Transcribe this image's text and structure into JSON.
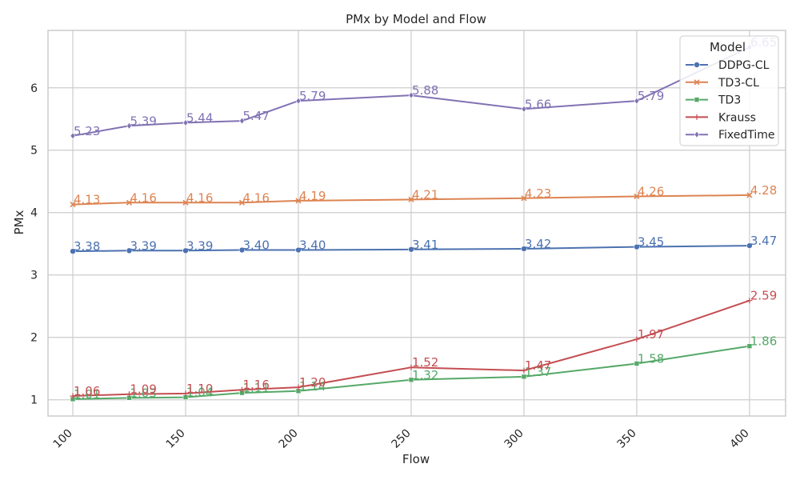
{
  "chart_data": {
    "type": "line",
    "title": "PMx by Model and Flow",
    "xlabel": "Flow",
    "ylabel": "PMx",
    "x": [
      100,
      125,
      150,
      175,
      200,
      250,
      300,
      350,
      400
    ],
    "xticks": [
      100,
      150,
      200,
      250,
      300,
      350,
      400
    ],
    "yticks": [
      1,
      2,
      3,
      4,
      5,
      6
    ],
    "xlim": [
      89,
      416
    ],
    "ylim": [
      0.74,
      6.92
    ],
    "grid": true,
    "legend": {
      "title": "Model",
      "placement": "top-right"
    },
    "series": [
      {
        "name": "DDPG-CL",
        "color": "#4c72b0",
        "marker": "circle",
        "values": [
          3.38,
          3.39,
          3.39,
          3.4,
          3.4,
          3.41,
          3.42,
          3.45,
          3.47
        ],
        "labels": [
          "3.38",
          "3.39",
          "3.39",
          "3.40",
          "3.40",
          "3.41",
          "3.42",
          "3.45",
          "3.47"
        ]
      },
      {
        "name": "TD3-CL",
        "color": "#dd8452",
        "marker": "x",
        "values": [
          4.13,
          4.16,
          4.16,
          4.16,
          4.19,
          4.21,
          4.23,
          4.26,
          4.28
        ],
        "labels": [
          "4.13",
          "4.16",
          "4.16",
          "4.16",
          "4.19",
          "4.21",
          "4.23",
          "4.26",
          "4.28"
        ]
      },
      {
        "name": "TD3",
        "color": "#55a868",
        "marker": "square",
        "values": [
          1.01,
          1.03,
          1.04,
          1.11,
          1.14,
          1.32,
          1.37,
          1.58,
          1.86
        ],
        "labels": [
          "1.01",
          "1.03",
          "1.04",
          "1.11",
          "1.14",
          "1.32",
          "1.37",
          "1.58",
          "1.86"
        ]
      },
      {
        "name": "Krauss",
        "color": "#c44e52",
        "marker": "plus",
        "values": [
          1.06,
          1.09,
          1.1,
          1.16,
          1.2,
          1.52,
          1.47,
          1.97,
          2.59
        ],
        "labels": [
          "1.06",
          "1.09",
          "1.10",
          "1.16",
          "1.20",
          "1.52",
          "1.47",
          "1.97",
          "2.59"
        ]
      },
      {
        "name": "FixedTime",
        "color": "#8172b3",
        "marker": "diamond",
        "values": [
          5.23,
          5.39,
          5.44,
          5.47,
          5.79,
          5.88,
          5.66,
          5.79,
          6.65
        ],
        "labels": [
          "5.23",
          "5.39",
          "5.44",
          "5.47",
          "5.79",
          "5.88",
          "5.66",
          "5.79",
          "6.65"
        ]
      }
    ]
  }
}
